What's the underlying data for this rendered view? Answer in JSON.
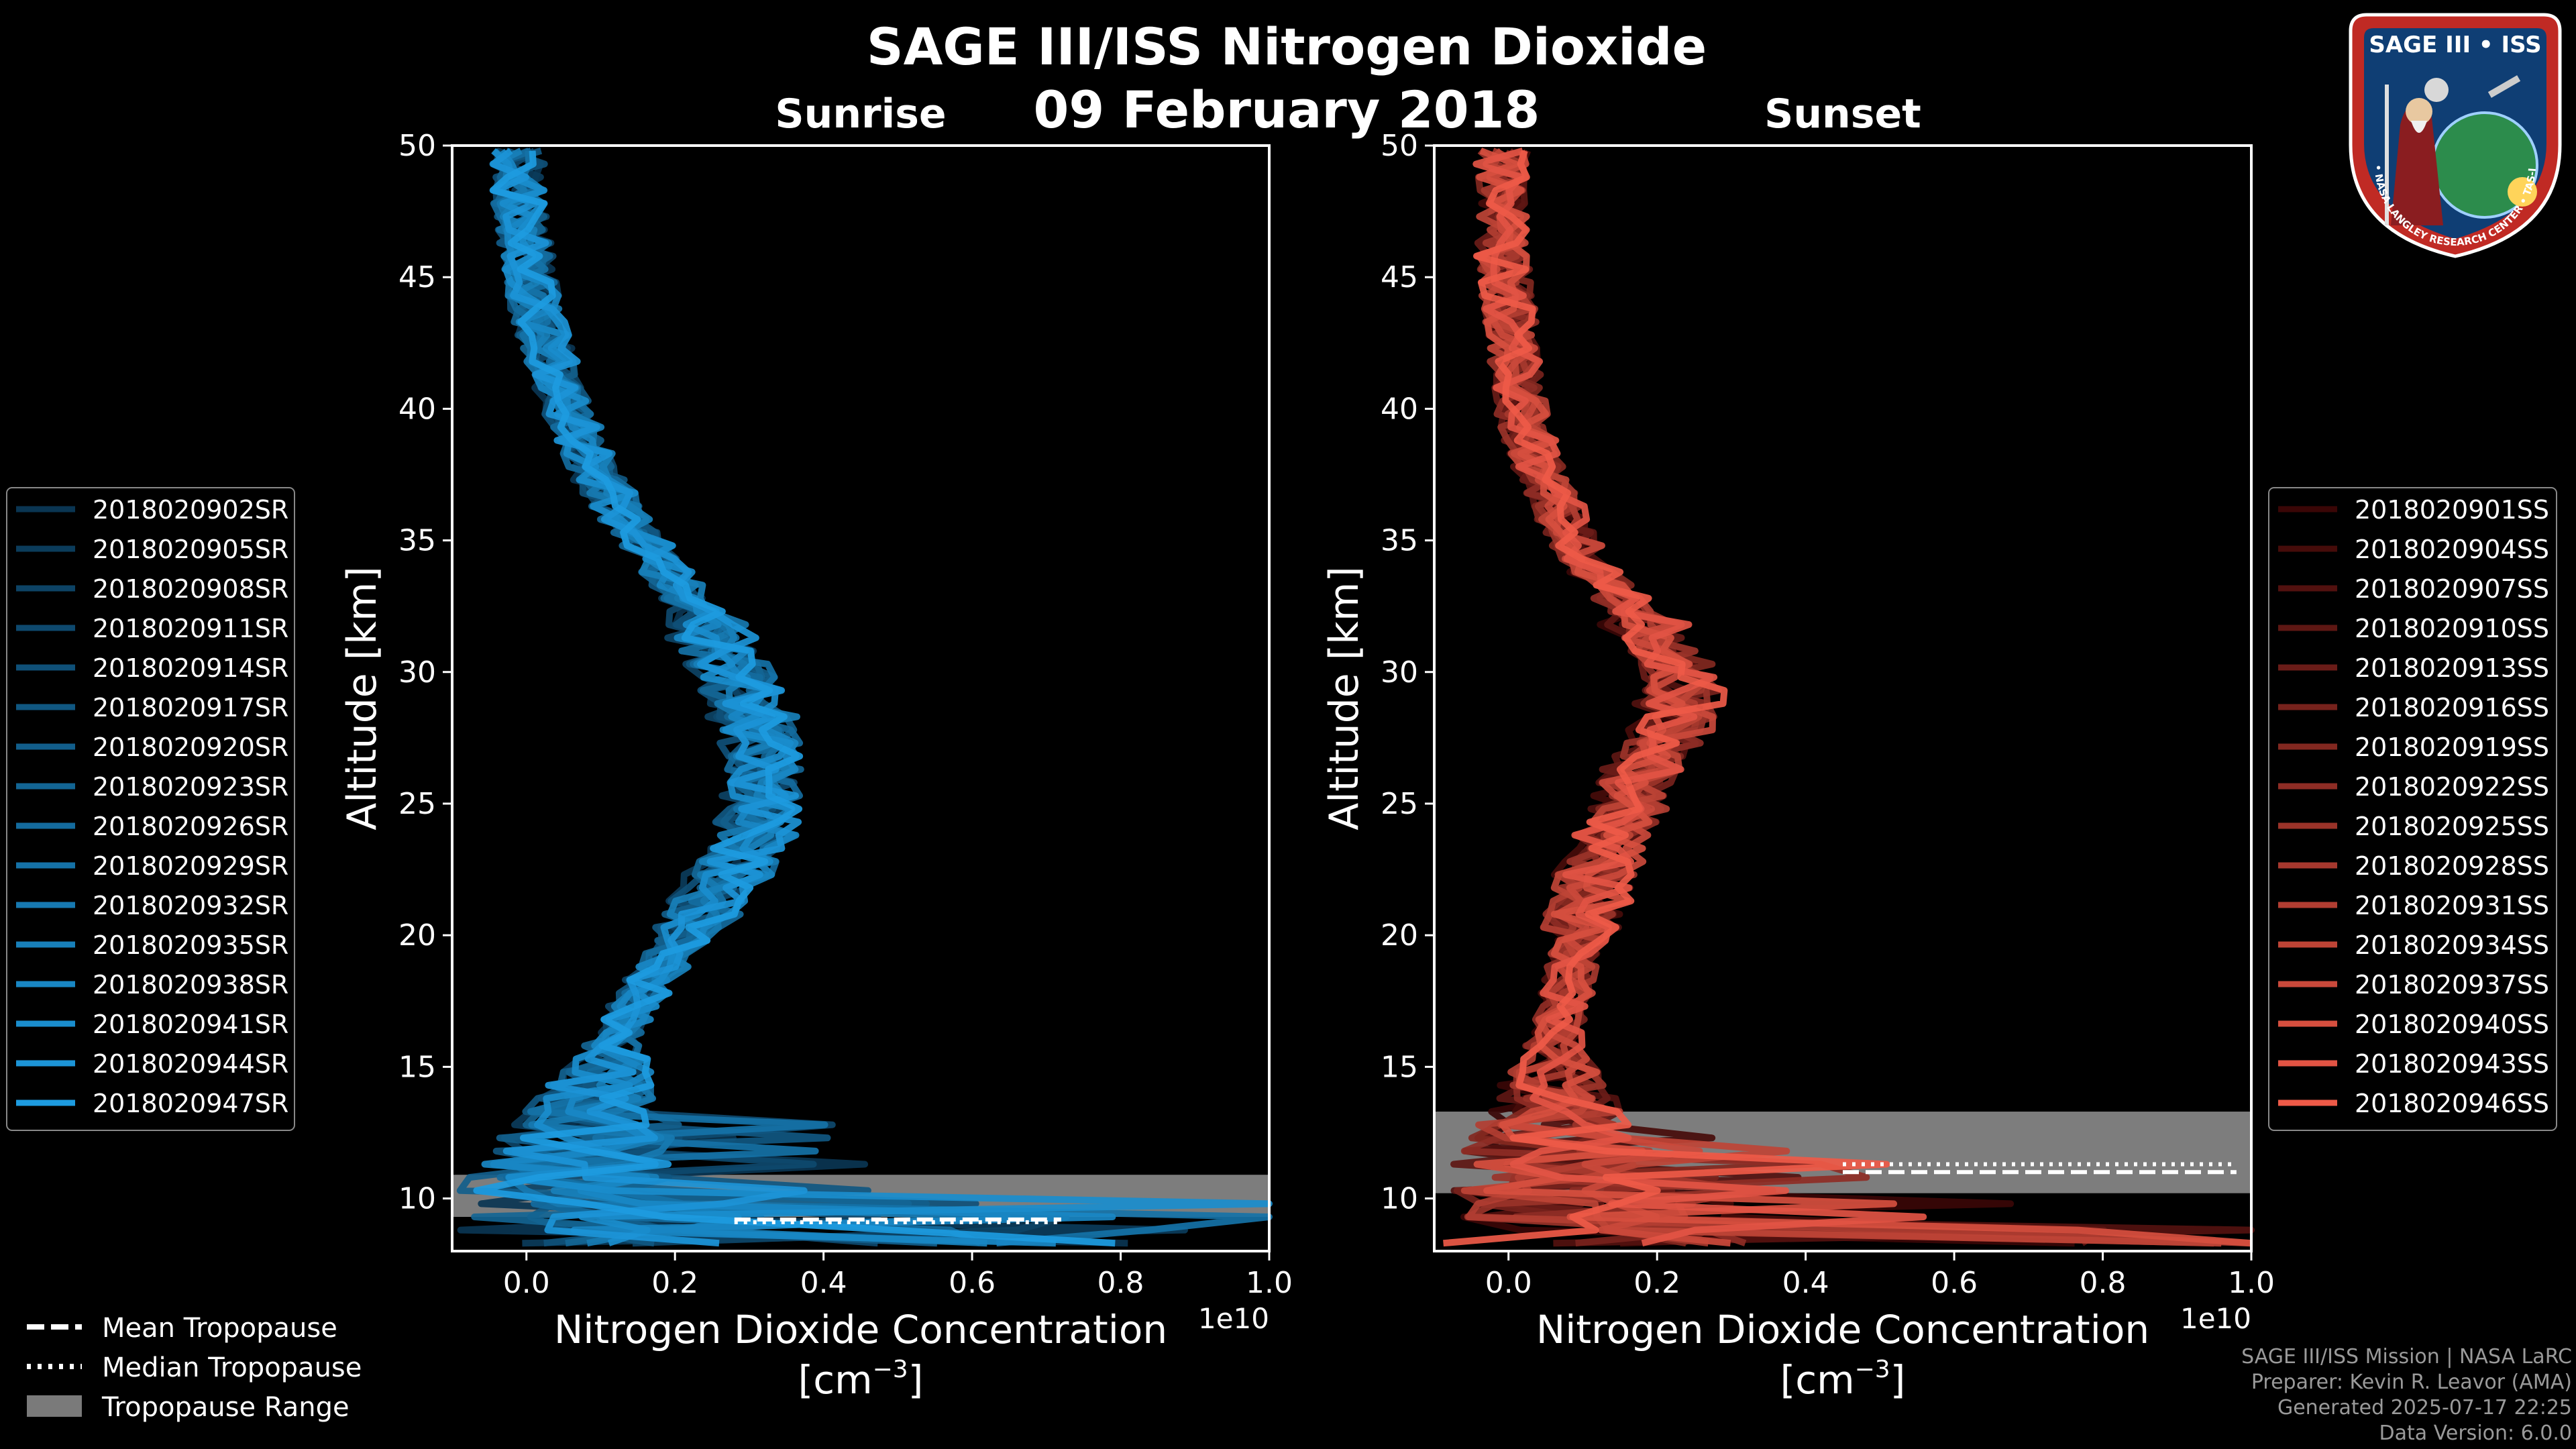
{
  "header": {
    "title": "SAGE III/ISS Nitrogen Dioxide",
    "date": "09 February 2018",
    "left_subtitle": "Sunrise",
    "right_subtitle": "Sunset"
  },
  "logo": {
    "name": "SAGE III • ISS",
    "ring_text": "BALL • NASA LANGLEY RESEARCH CENTER • TAS-I • ESA"
  },
  "legend_tropo": {
    "mean": "Mean Tropopause",
    "median": "Median Tropopause",
    "range": "Tropopause Range"
  },
  "credits": {
    "line1": "SAGE III/ISS Mission | NASA LaRC",
    "line2": "Preparer: Kevin R. Leavor (AMA)",
    "line3": "Generated 2025-07-17 22:25",
    "line4": "Data Version: 6.0.0"
  },
  "chart_data": [
    {
      "type": "line",
      "panel": "Sunrise",
      "xlabel": "Nitrogen Dioxide Concentration",
      "xunits": "[cm^-3]",
      "ylabel": "Altitude [km]",
      "xlim": [
        -0.1,
        1.0
      ],
      "ylim": [
        8,
        50
      ],
      "x_multiplier": "1e10",
      "xticks": [
        0.0,
        0.2,
        0.4,
        0.6,
        0.8,
        1.0
      ],
      "xtick_labels": [
        "0.0",
        "0.2",
        "0.4",
        "0.6",
        "0.8",
        "1.0"
      ],
      "yticks": [
        10,
        15,
        20,
        25,
        30,
        35,
        40,
        45,
        50
      ],
      "legend_position": "left",
      "series_color_start": "#0a3552",
      "series_color_end": "#1d9be0",
      "series_names": [
        "2018020902SR",
        "2018020905SR",
        "2018020908SR",
        "2018020911SR",
        "2018020914SR",
        "2018020917SR",
        "2018020920SR",
        "2018020923SR",
        "2018020926SR",
        "2018020929SR",
        "2018020932SR",
        "2018020935SR",
        "2018020938SR",
        "2018020941SR",
        "2018020944SR",
        "2018020947SR"
      ],
      "typical_profile": {
        "altitude_km": [
          8.5,
          10,
          12,
          14,
          16,
          18,
          20,
          22,
          24,
          26,
          28,
          30,
          32,
          34,
          36,
          38,
          40,
          42,
          44,
          46,
          48,
          50
        ],
        "no2_e10": [
          0.06,
          0.05,
          0.07,
          0.09,
          0.11,
          0.15,
          0.2,
          0.25,
          0.29,
          0.3,
          0.29,
          0.26,
          0.22,
          0.17,
          0.12,
          0.08,
          0.05,
          0.03,
          0.01,
          0.0,
          -0.01,
          -0.01
        ]
      },
      "tropopause": {
        "range_km": [
          9.3,
          10.9
        ],
        "mean_km": 9.2,
        "median_km": 9.1,
        "line_x_range": [
          0.28,
          0.72
        ]
      }
    },
    {
      "type": "line",
      "panel": "Sunset",
      "xlabel": "Nitrogen Dioxide Concentration",
      "xunits": "[cm^-3]",
      "ylabel": "Altitude [km]",
      "xlim": [
        -0.1,
        1.0
      ],
      "ylim": [
        8,
        50
      ],
      "x_multiplier": "1e10",
      "xticks": [
        0.0,
        0.2,
        0.4,
        0.6,
        0.8,
        1.0
      ],
      "xtick_labels": [
        "0.0",
        "0.2",
        "0.4",
        "0.6",
        "0.8",
        "1.0"
      ],
      "yticks": [
        10,
        15,
        20,
        25,
        30,
        35,
        40,
        45,
        50
      ],
      "legend_position": "right",
      "series_color_start": "#3a0606",
      "series_color_end": "#ee5a48",
      "series_names": [
        "2018020901SS",
        "2018020904SS",
        "2018020907SS",
        "2018020910SS",
        "2018020913SS",
        "2018020916SS",
        "2018020919SS",
        "2018020922SS",
        "2018020925SS",
        "2018020928SS",
        "2018020931SS",
        "2018020934SS",
        "2018020937SS",
        "2018020940SS",
        "2018020943SS",
        "2018020946SS"
      ],
      "typical_profile": {
        "altitude_km": [
          8.5,
          10,
          12,
          14,
          16,
          18,
          20,
          22,
          24,
          26,
          28,
          30,
          32,
          34,
          36,
          38,
          40,
          42,
          44,
          46,
          48,
          50
        ],
        "no2_e10": [
          0.12,
          0.08,
          0.07,
          0.07,
          0.07,
          0.09,
          0.11,
          0.13,
          0.16,
          0.2,
          0.25,
          0.27,
          0.2,
          0.12,
          0.08,
          0.04,
          0.02,
          0.01,
          0.0,
          -0.01,
          -0.01,
          -0.01
        ]
      },
      "tropopause": {
        "range_km": [
          10.2,
          13.3
        ],
        "mean_km": 11.0,
        "median_km": 11.3,
        "line_x_range": [
          0.45,
          0.98
        ]
      }
    }
  ]
}
